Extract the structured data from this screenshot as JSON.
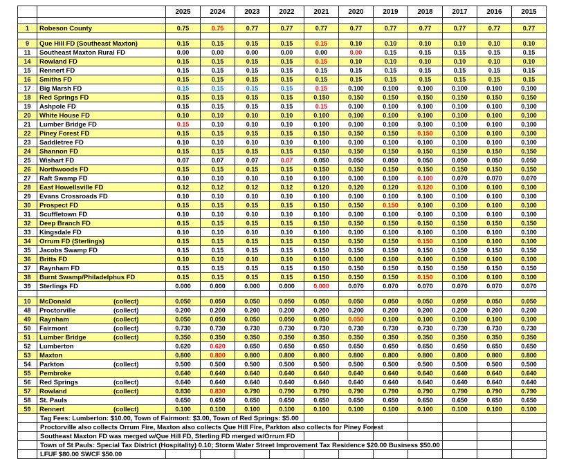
{
  "colors": {
    "highlight": "#FFFF99",
    "red": "#FF0000",
    "blue": "#0070C0",
    "grid": "#222222"
  },
  "labels": {
    "collect": "(collect)"
  },
  "years": [
    "2025",
    "2024",
    "2023",
    "2022",
    "2021",
    "2020",
    "2019",
    "2018",
    "2017",
    "2016",
    "2015"
  ],
  "sections": [
    {
      "name": "county",
      "rows": [
        {
          "num": "1",
          "name": "Robeson County",
          "hl": true,
          "values": [
            "0.75",
            "0.75",
            "0.77",
            "0.77",
            "0.77",
            "0.77",
            "0.77",
            "0.77",
            "0.77",
            "0.77",
            "0.77"
          ],
          "red": [
            1
          ]
        }
      ]
    },
    {
      "name": "fire-districts",
      "rows": [
        {
          "num": "9",
          "name": "Que Hill FD (Southeast Maxton)",
          "hl": true,
          "values": [
            "0.15",
            "0.15",
            "0.15",
            "0.15",
            "0.15",
            "0.10",
            "0.10",
            "0.10",
            "0.10",
            "0.10",
            "0.10"
          ],
          "red": [
            4
          ]
        },
        {
          "num": "11",
          "name": "Southeast Maxton Rural FD",
          "hl": false,
          "values": [
            "0.00",
            "0.00",
            "0.00",
            "0.00",
            "0.00",
            "0.00",
            "0.15",
            "0.15",
            "0.15",
            "0.15",
            "0.15"
          ],
          "red": [
            5
          ]
        },
        {
          "num": "14",
          "name": "Rowland FD",
          "hl": true,
          "values": [
            "0.15",
            "0.15",
            "0.15",
            "0.15",
            "0.15",
            "0.10",
            "0.10",
            "0.10",
            "0.10",
            "0.10",
            "0.10"
          ],
          "red": [
            4
          ]
        },
        {
          "num": "15",
          "name": "Rennert FD",
          "hl": false,
          "values": [
            "0.15",
            "0.15",
            "0.15",
            "0.15",
            "0.15",
            "0.15",
            "0.15",
            "0.15",
            "0.15",
            "0.15",
            "0.15"
          ]
        },
        {
          "num": "16",
          "name": "Smiths FD",
          "hl": true,
          "values": [
            "0.15",
            "0.15",
            "0.15",
            "0.15",
            "0.15",
            "0.15",
            "0.15",
            "0.15",
            "0.15",
            "0.15",
            "0.15"
          ]
        },
        {
          "num": "17",
          "name": "Big Marsh FD",
          "hl": false,
          "values": [
            "0.15",
            "0.15",
            "0.15",
            "0.15",
            "0.15",
            "0.100",
            "0.100",
            "0.100",
            "0.100",
            "0.100",
            "0.100"
          ],
          "blue": [
            0,
            1,
            2,
            3
          ],
          "red": [
            4
          ]
        },
        {
          "num": "18",
          "name": "Red Springs FD",
          "hl": true,
          "values": [
            "0.15",
            "0.15",
            "0.15",
            "0.15",
            "0.150",
            "0.150",
            "0.150",
            "0.150",
            "0.150",
            "0.150",
            "0.150"
          ]
        },
        {
          "num": "19",
          "name": "Ashpole FD",
          "hl": false,
          "values": [
            "0.15",
            "0.15",
            "0.15",
            "0.15",
            "0.15",
            "0.100",
            "0.100",
            "0.100",
            "0.100",
            "0.100",
            "0.100"
          ],
          "red": [
            4
          ]
        },
        {
          "num": "20",
          "name": "White House FD",
          "hl": true,
          "values": [
            "0.10",
            "0.10",
            "0.10",
            "0.10",
            "0.100",
            "0.100",
            "0.100",
            "0.100",
            "0.100",
            "0.100",
            "0.100"
          ]
        },
        {
          "num": "21",
          "name": "Lumber Bridge FD",
          "hl": false,
          "values": [
            "0.15",
            "0.10",
            "0.10",
            "0.10",
            "0.100",
            "0.100",
            "0.100",
            "0.100",
            "0.100",
            "0.100",
            "0.100"
          ],
          "red": [
            0
          ]
        },
        {
          "num": "22",
          "name": "Piney Forest FD",
          "hl": true,
          "values": [
            "0.15",
            "0.15",
            "0.15",
            "0.15",
            "0.150",
            "0.150",
            "0.150",
            "0.150",
            "0.100",
            "0.100",
            "0.100"
          ],
          "red": [
            7
          ]
        },
        {
          "num": "23",
          "name": "Saddletree FD",
          "hl": false,
          "values": [
            "0.10",
            "0.10",
            "0.10",
            "0.10",
            "0.100",
            "0.100",
            "0.100",
            "0.100",
            "0.100",
            "0.100",
            "0.100"
          ]
        },
        {
          "num": "24",
          "name": "Shannon FD",
          "hl": true,
          "values": [
            "0.15",
            "0.15",
            "0.15",
            "0.15",
            "0.150",
            "0.150",
            "0.150",
            "0.150",
            "0.150",
            "0.150",
            "0.150"
          ]
        },
        {
          "num": "25",
          "name": "Wishart FD",
          "hl": false,
          "values": [
            "0.07",
            "0.07",
            "0.07",
            "0.07",
            "0.050",
            "0.050",
            "0.050",
            "0.050",
            "0.050",
            "0.050",
            "0.050"
          ],
          "red": [
            3
          ]
        },
        {
          "num": "26",
          "name": "Northwoods FD",
          "hl": true,
          "values": [
            "0.15",
            "0.15",
            "0.15",
            "0.15",
            "0.150",
            "0.150",
            "0.150",
            "0.150",
            "0.150",
            "0.150",
            "0.150"
          ]
        },
        {
          "num": "27",
          "name": "Raft Swamp FD",
          "hl": false,
          "values": [
            "0.10",
            "0.10",
            "0.10",
            "0.10",
            "0.100",
            "0.100",
            "0.100",
            "0.100",
            "0.070",
            "0.070",
            "0.070"
          ],
          "red": [
            7
          ]
        },
        {
          "num": "28",
          "name": "East Howellsville FD",
          "hl": true,
          "values": [
            "0.12",
            "0.12",
            "0.12",
            "0.12",
            "0.120",
            "0.120",
            "0.120",
            "0.120",
            "0.100",
            "0.100",
            "0.100"
          ],
          "red": [
            7
          ]
        },
        {
          "num": "29",
          "name": "Evans Crossroads FD",
          "hl": false,
          "values": [
            "0.10",
            "0.10",
            "0.10",
            "0.10",
            "0.100",
            "0.100",
            "0.100",
            "0.100",
            "0.100",
            "0.100",
            "0.100"
          ]
        },
        {
          "num": "30",
          "name": "Prospect FD",
          "hl": true,
          "values": [
            "0.15",
            "0.15",
            "0.15",
            "0.15",
            "0.150",
            "0.150",
            "0.150",
            "0.100",
            "0.100",
            "0.100",
            "0.100"
          ],
          "red": [
            6
          ]
        },
        {
          "num": "31",
          "name": "Scuffletown FD",
          "hl": false,
          "values": [
            "0.10",
            "0.10",
            "0.10",
            "0.10",
            "0.100",
            "0.100",
            "0.100",
            "0.100",
            "0.100",
            "0.100",
            "0.100"
          ]
        },
        {
          "num": "32",
          "name": "Deep Branch FD",
          "hl": true,
          "values": [
            "0.15",
            "0.15",
            "0.15",
            "0.15",
            "0.150",
            "0.150",
            "0.150",
            "0.150",
            "0.150",
            "0.150",
            "0.150"
          ]
        },
        {
          "num": "33",
          "name": "Kingsdale FD",
          "hl": false,
          "values": [
            "0.10",
            "0.10",
            "0.10",
            "0.10",
            "0.100",
            "0.100",
            "0.100",
            "0.100",
            "0.100",
            "0.100",
            "0.100"
          ]
        },
        {
          "num": "34",
          "name": "Orrum FD (Sterlings)",
          "hl": true,
          "values": [
            "0.15",
            "0.15",
            "0.15",
            "0.15",
            "0.150",
            "0.150",
            "0.150",
            "0.150",
            "0.100",
            "0.100",
            "0.100"
          ],
          "red": [
            7
          ]
        },
        {
          "num": "35",
          "name": "Jacobs Swamp FD",
          "hl": false,
          "values": [
            "0.15",
            "0.15",
            "0.15",
            "0.15",
            "0.150",
            "0.150",
            "0.150",
            "0.150",
            "0.150",
            "0.150",
            "0.150"
          ]
        },
        {
          "num": "36",
          "name": "Britts FD",
          "hl": true,
          "values": [
            "0.10",
            "0.10",
            "0.10",
            "0.10",
            "0.100",
            "0.100",
            "0.100",
            "0.100",
            "0.100",
            "0.100",
            "0.100"
          ]
        },
        {
          "num": "37",
          "name": "Raynham FD",
          "hl": false,
          "values": [
            "0.15",
            "0.15",
            "0.15",
            "0.15",
            "0.150",
            "0.150",
            "0.150",
            "0.150",
            "0.150",
            "0.150",
            "0.150"
          ]
        },
        {
          "num": "38",
          "name": "Burnt Swamp/Philadelphus FD",
          "hl": true,
          "values": [
            "0.15",
            "0.15",
            "0.15",
            "0.15",
            "0.150",
            "0.150",
            "0.150",
            "0.150",
            "0.100",
            "0.100",
            "0.100"
          ],
          "red": [
            7
          ]
        },
        {
          "num": "39",
          "name": "Sterlings FD",
          "hl": false,
          "values": [
            "0.000",
            "0.000",
            "0.000",
            "0.000",
            "0.000",
            "0.070",
            "0.070",
            "0.070",
            "0.070",
            "0.070",
            "0.070"
          ],
          "red": [
            4
          ]
        }
      ]
    },
    {
      "name": "towns",
      "rows": [
        {
          "num": "10",
          "name": "McDonald",
          "collect": true,
          "hl": true,
          "values": [
            "0.050",
            "0.050",
            "0.050",
            "0.050",
            "0.050",
            "0.050",
            "0.050",
            "0.050",
            "0.050",
            "0.050",
            "0.050"
          ]
        },
        {
          "num": "48",
          "name": "Proctorville",
          "collect": true,
          "hl": false,
          "values": [
            "0.200",
            "0.200",
            "0.200",
            "0.200",
            "0.200",
            "0.200",
            "0.200",
            "0.200",
            "0.200",
            "0.200",
            "0.200"
          ]
        },
        {
          "num": "49",
          "name": "Raynham",
          "collect": true,
          "hl": true,
          "values": [
            "0.050",
            "0.050",
            "0.050",
            "0.050",
            "0.050",
            "0.050",
            "0.100",
            "0.100",
            "0.100",
            "0.100",
            "0.100"
          ],
          "red": [
            5
          ]
        },
        {
          "num": "50",
          "name": "Fairmont",
          "collect": true,
          "hl": false,
          "values": [
            "0.730",
            "0.730",
            "0.730",
            "0.730",
            "0.730",
            "0.730",
            "0.730",
            "0.730",
            "0.730",
            "0.730",
            "0.730"
          ]
        },
        {
          "num": "51",
          "name": "Lumber Bridge",
          "collect": true,
          "hl": true,
          "values": [
            "0.350",
            "0.350",
            "0.350",
            "0.350",
            "0.350",
            "0.350",
            "0.350",
            "0.350",
            "0.350",
            "0.350",
            "0.350"
          ]
        },
        {
          "num": "52",
          "name": "Lumberton",
          "collect": false,
          "hl": false,
          "values": [
            "0.620",
            "0.620",
            "0.650",
            "0.650",
            "0.650",
            "0.650",
            "0.650",
            "0.650",
            "0.650",
            "0.650",
            "0.650"
          ],
          "red": [
            1
          ]
        },
        {
          "num": "53",
          "name": "Maxton",
          "collect": false,
          "hl": true,
          "values": [
            "0.800",
            "0.800",
            "0.800",
            "0.800",
            "0.800",
            "0.800",
            "0.800",
            "0.800",
            "0.800",
            "0.800",
            "0.800"
          ],
          "red": [
            1
          ]
        },
        {
          "num": "54",
          "name": "Parkton",
          "collect": true,
          "hl": false,
          "values": [
            "0.500",
            "0.500",
            "0.500",
            "0.500",
            "0.500",
            "0.500",
            "0.500",
            "0.500",
            "0.500",
            "0.500",
            "0.500"
          ]
        },
        {
          "num": "55",
          "name": "Pembroke",
          "collect": false,
          "hl": true,
          "values": [
            "0.640",
            "0.640",
            "0.640",
            "0.640",
            "0.640",
            "0.640",
            "0.640",
            "0.640",
            "0.640",
            "0.640",
            "0.640"
          ]
        },
        {
          "num": "56",
          "name": "Red Springs",
          "collect": true,
          "hl": false,
          "values": [
            "0.640",
            "0.640",
            "0.640",
            "0.640",
            "0.640",
            "0.640",
            "0.640",
            "0.640",
            "0.640",
            "0.640",
            "0.640"
          ]
        },
        {
          "num": "57",
          "name": "Rowland",
          "collect": true,
          "hl": true,
          "values": [
            "0.830",
            "0.830",
            "0.790",
            "0.790",
            "0.790",
            "0.790",
            "0.790",
            "0.790",
            "0.790",
            "0.790",
            "0.790"
          ],
          "red": [
            1
          ]
        },
        {
          "num": "58",
          "name": "St. Pauls",
          "collect": false,
          "hl": false,
          "values": [
            "0.650",
            "0.650",
            "0.650",
            "0.650",
            "0.650",
            "0.650",
            "0.650",
            "0.650",
            "0.650",
            "0.650",
            "0.650"
          ]
        },
        {
          "num": "59",
          "name": "Rennert",
          "collect": true,
          "hl": true,
          "values": [
            "0.100",
            "0.100",
            "0.100",
            "0.100",
            "0.100",
            "0.100",
            "0.100",
            "0.100",
            "0.100",
            "0.100",
            "0.100"
          ]
        }
      ]
    }
  ],
  "footnotes": [
    {
      "text": "Tag Fees: Lumberton: $10.00, Town of Fairmont: $3.00, Town of Red Springs: $5.00",
      "span": 4
    },
    {
      "text": "Proctorville also collects Orrum Fire,  Maxton also collects Que Hill Fire, Parkton also collects for Piney Forest",
      "span": 6
    },
    {
      "text": "Southeast Maxton FD was merged w/Que Hill FD, Sterling FD merged w/Orrum FD",
      "span": 4
    },
    {
      "text": "Town of St Pauls: Special Tax District (Hospitality) 0.10; Storm Water Street Improvement Tax Residence $20.00 Business $50.00",
      "span": 8
    },
    {
      "text": "LFUF $80.00 SWCF $50.00",
      "span": 0
    }
  ]
}
